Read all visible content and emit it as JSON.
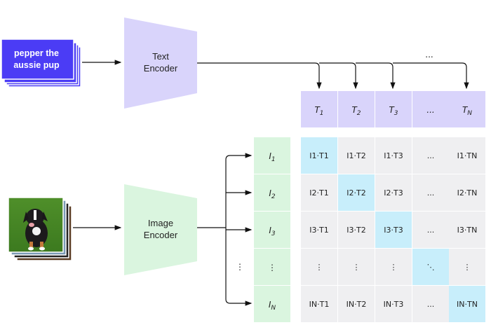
{
  "text_input": {
    "lines": [
      "pepper the",
      "aussie pup"
    ]
  },
  "text_encoder": {
    "lines": [
      "Text",
      "Encoder"
    ]
  },
  "image_encoder": {
    "lines": [
      "Image",
      "Encoder"
    ]
  },
  "text_embeddings": [
    "T1",
    "T2",
    "T3",
    "...",
    "TN"
  ],
  "image_embeddings": [
    "I1",
    "I2",
    "I3",
    "⋮",
    "IN"
  ],
  "matrix": [
    [
      "I1·T1",
      "I1·T2",
      "I1·T3",
      "...",
      "I1·TN"
    ],
    [
      "I2·T1",
      "I2·T2",
      "I2·T3",
      "...",
      "I2·TN"
    ],
    [
      "I3·T1",
      "I3·T2",
      "I3·T3",
      "...",
      "I3·TN"
    ],
    [
      "⋮",
      "⋮",
      "⋮",
      "⋱",
      "⋮"
    ],
    [
      "IN·T1",
      "IN·T2",
      "IN·T3",
      "...",
      "IN·TN"
    ]
  ],
  "ellipsis_h": "...",
  "ellipsis_v": "⋮",
  "colors": {
    "text_card": "#4b3cf5",
    "text_encoder": "#d9d4fb",
    "image_encoder": "#daf5df",
    "t_cell": "#d9d4fb",
    "i_cell": "#daf5df",
    "matrix_cell": "#efeff1",
    "diagonal_cell": "#c8eefb"
  }
}
